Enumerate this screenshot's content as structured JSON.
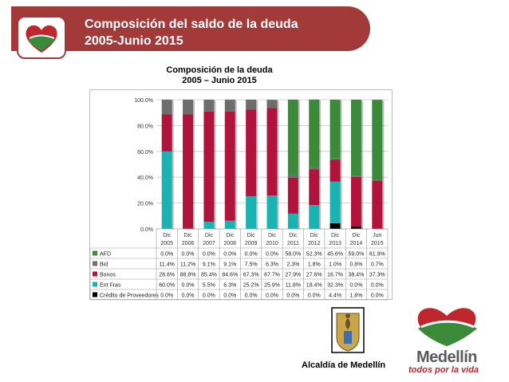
{
  "header": {
    "title_line1": "Composición del saldo de la deuda",
    "title_line2": "2005-Junio 2015"
  },
  "chart_data": {
    "type": "bar",
    "stacked": true,
    "title_line1": "Composición de la deuda",
    "title_line2": "2005 – Junio 2015",
    "categories": [
      [
        "Dic",
        "2005"
      ],
      [
        "Dic",
        "2006"
      ],
      [
        "Dic",
        "2007"
      ],
      [
        "Dic",
        "2008"
      ],
      [
        "Dic",
        "2009"
      ],
      [
        "Dic",
        "2010"
      ],
      [
        "Dic",
        "2011"
      ],
      [
        "Dic",
        "2012"
      ],
      [
        "Dic",
        "2013"
      ],
      [
        "Dic",
        "2014"
      ],
      [
        "Jun",
        "2015"
      ]
    ],
    "yticks": [
      "0.0%",
      "20.0%",
      "40.0%",
      "60.0%",
      "80.0%",
      "100.0%"
    ],
    "ylim": [
      0,
      100
    ],
    "grid": true,
    "series": [
      {
        "name": "AFD",
        "color": "#3a8a3a",
        "values": [
          0.0,
          0.0,
          0.0,
          0.0,
          0.0,
          0.0,
          58.0,
          52.3,
          45.6,
          59.0,
          61.9
        ],
        "labels": [
          "0.0%",
          "0.0%",
          "0.0%",
          "0.0%",
          "0.0%",
          "0.0%",
          "58.0%",
          "52.3%",
          "45.6%",
          "59.0%",
          "61.9%"
        ]
      },
      {
        "name": "Bid",
        "color": "#6d6d6d",
        "values": [
          11.4,
          11.2,
          9.1,
          9.1,
          7.5,
          6.3,
          2.3,
          1.8,
          1.0,
          0.8,
          0.7
        ],
        "labels": [
          "11.4%",
          "11.2%",
          "9.1%",
          "9.1%",
          "7.5%",
          "6.3%",
          "2.3%",
          "1.8%",
          "1.0%",
          "0.8%",
          "0.7%"
        ]
      },
      {
        "name": "Bonos",
        "color": "#b0143c",
        "values": [
          28.6,
          88.8,
          85.4,
          84.6,
          67.3,
          67.7,
          27.9,
          27.6,
          16.7,
          38.4,
          37.3
        ],
        "labels": [
          "28.6%",
          "88.8%",
          "85.4%",
          "84.6%",
          "67.3%",
          "67.7%",
          "27.9%",
          "27.6%",
          "16.7%",
          "38.4%",
          "37.3%"
        ]
      },
      {
        "name": "Ent Fras",
        "color": "#1ab3b3",
        "values": [
          60.0,
          0.0,
          5.5,
          6.3,
          25.2,
          25.9,
          11.8,
          18.4,
          32.3,
          0.0,
          0.0
        ],
        "labels": [
          "60.0%",
          "0.0%",
          "5.5%",
          "6.3%",
          "25.2%",
          "25.9%",
          "11.8%",
          "18.4%",
          "32.3%",
          "0.0%",
          "0.0%"
        ]
      },
      {
        "name": "Crédito de Proveedores",
        "color": "#000000",
        "values": [
          0.0,
          0.0,
          0.0,
          0.0,
          0.0,
          0.0,
          0.0,
          0.0,
          4.4,
          1.8,
          0.0
        ],
        "labels": [
          "0.0%",
          "0.0%",
          "0.0%",
          "0.0%",
          "0.0%",
          "0.0%",
          "0.0%",
          "0.0%",
          "4.4%",
          "1.8%",
          "0.0%"
        ]
      }
    ],
    "stack_order_bottom_to_top": [
      "Crédito de Proveedores",
      "Ent Fras",
      "Bonos",
      "Bid",
      "AFD"
    ]
  },
  "footer": {
    "alcaldia": "Alcaldía de Medellín",
    "brand_name": "Medellín",
    "brand_tag": "todos por la vida"
  },
  "colors": {
    "header_bg": "#a23a3a",
    "brand_red": "#c0262d",
    "brand_green": "#3a8a3a"
  }
}
